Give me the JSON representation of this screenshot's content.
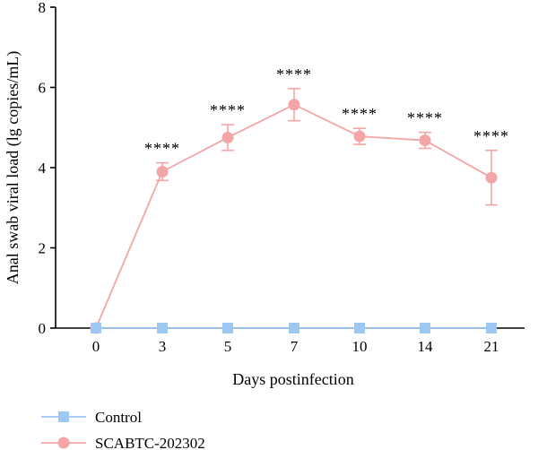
{
  "chart_data": {
    "type": "line",
    "xlabel": "Days postinfection",
    "ylabel": "Anal swab viral load (lg copies/mL)",
    "categories": [
      "0",
      "3",
      "5",
      "7",
      "10",
      "14",
      "21"
    ],
    "ylim": [
      0,
      8
    ],
    "yticks": [
      "0",
      "2",
      "4",
      "6",
      "8"
    ],
    "legend_position": "bottom-left",
    "series": [
      {
        "name": "Control",
        "marker": "square",
        "color": "#9ec7f2",
        "values": [
          0,
          0,
          0,
          0,
          0,
          0,
          0
        ]
      },
      {
        "name": "SCABTC-202302",
        "marker": "circle",
        "color": "#f4a5a5",
        "values": [
          0,
          3.9,
          4.75,
          5.57,
          4.78,
          4.68,
          3.75
        ],
        "error": [
          0,
          0.22,
          0.32,
          0.4,
          0.2,
          0.2,
          0.68
        ],
        "annotations": [
          "",
          "****",
          "****",
          "****",
          "****",
          "****",
          "****"
        ]
      }
    ]
  }
}
